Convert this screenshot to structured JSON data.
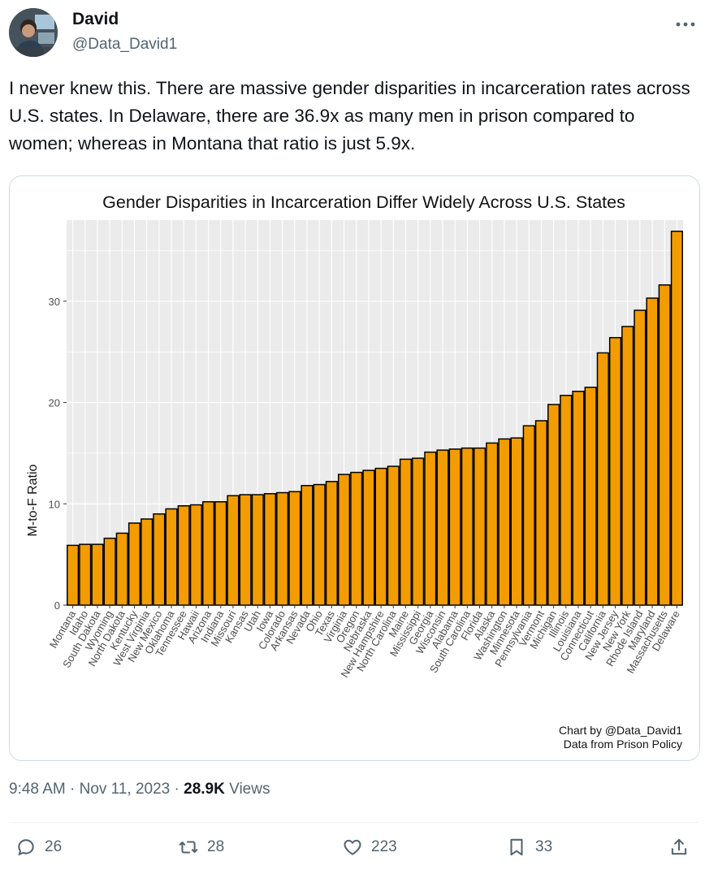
{
  "author": {
    "name": "David",
    "handle": "@Data_David1"
  },
  "more_icon": "ellipsis-icon",
  "tweet": {
    "text": "I never knew this. There are massive gender disparities in incarceration rates across U.S. states. In Delaware, there are 36.9x as many men in prison compared to women; whereas in Montana that ratio is just 5.9x."
  },
  "meta": {
    "time": "9:48 AM",
    "date": "Nov 11, 2023",
    "views_count": "28.9K",
    "views_label": "Views"
  },
  "actions": {
    "replies": "26",
    "reposts": "28",
    "likes": "223",
    "bookmarks": "33"
  },
  "colors": {
    "bar_fill": "#F39C00",
    "bar_stroke": "#000000",
    "panel_bg": "#EBEBEB",
    "grid": "#FFFFFF"
  },
  "chart_data": {
    "type": "bar",
    "title": "Gender Disparities in Incarceration Differ Widely Across U.S. States",
    "ylabel": "M-to-F Ratio",
    "xlabel": "",
    "ylim": [
      0,
      38
    ],
    "yticks": [
      0,
      10,
      20,
      30
    ],
    "grid": true,
    "caption": [
      "Chart by @Data_David1",
      "Data from Prison Policy"
    ],
    "categories": [
      "Montana",
      "Idaho",
      "South Dakota",
      "Wyoming",
      "North Dakota",
      "Kentucky",
      "West Virginia",
      "New Mexico",
      "Oklahoma",
      "Tennessee",
      "Hawaii",
      "Arizona",
      "Indiana",
      "Missouri",
      "Kansas",
      "Utah",
      "Iowa",
      "Colorado",
      "Arkansas",
      "Nevada",
      "Ohio",
      "Texas",
      "Virginia",
      "Oregon",
      "Nebraska",
      "New Hampshire",
      "North Carolina",
      "Maine",
      "Mississippi",
      "Georgia",
      "Wisconsin",
      "Alabama",
      "South Carolina",
      "Florida",
      "Alaska",
      "Washington",
      "Minnesota",
      "Pennsylvania",
      "Vermont",
      "Michigan",
      "Illinois",
      "Louisiana",
      "Connecticut",
      "California",
      "New Jersey",
      "New York",
      "Rhode Island",
      "Maryland",
      "Massachusetts",
      "Delaware"
    ],
    "values": [
      5.9,
      6.0,
      6.0,
      6.6,
      7.1,
      8.1,
      8.5,
      9.0,
      9.5,
      9.8,
      9.9,
      10.2,
      10.2,
      10.8,
      10.9,
      10.9,
      11.0,
      11.1,
      11.2,
      11.8,
      11.9,
      12.2,
      12.9,
      13.1,
      13.3,
      13.5,
      13.7,
      14.4,
      14.5,
      15.1,
      15.3,
      15.4,
      15.5,
      15.5,
      16.0,
      16.4,
      16.5,
      17.7,
      18.2,
      19.8,
      20.7,
      21.1,
      21.5,
      24.9,
      26.4,
      27.5,
      29.1,
      30.3,
      31.6,
      36.9
    ]
  }
}
